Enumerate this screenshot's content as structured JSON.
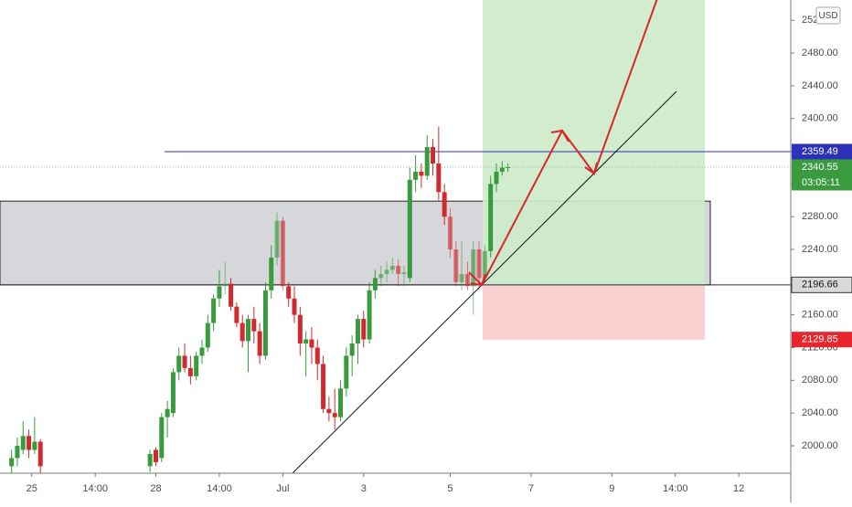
{
  "chart_data": {
    "type": "candlestick",
    "currency": "USD",
    "x": [
      2,
      3,
      4,
      5,
      6,
      7,
      26,
      27,
      28,
      29,
      30,
      31,
      32,
      33,
      34,
      35,
      36,
      37,
      38,
      39,
      40,
      41,
      42,
      43,
      44,
      45,
      46,
      47,
      48,
      49,
      50,
      51,
      52,
      53,
      54,
      55,
      56,
      57,
      58,
      59,
      60,
      61,
      62,
      63,
      64,
      65,
      66,
      67,
      68,
      69,
      70,
      71,
      72,
      73,
      74,
      75,
      76,
      77,
      78,
      79,
      80,
      81,
      82,
      83,
      84,
      85,
      86,
      87,
      88
    ],
    "open": [
      1975,
      1985,
      1995,
      2012,
      1995,
      2005,
      1975,
      1995,
      1985,
      2035,
      2040,
      2090,
      2110,
      2095,
      2085,
      2110,
      2120,
      2150,
      2180,
      2195,
      2198,
      2170,
      2150,
      2128,
      2155,
      2140,
      2110,
      2190,
      2230,
      2275,
      2195,
      2180,
      2160,
      2125,
      2130,
      2120,
      2100,
      2045,
      2040,
      2035,
      2070,
      2110,
      2125,
      2155,
      2130,
      2190,
      2205,
      2210,
      2215,
      2220,
      2210,
      2205,
      2325,
      2335,
      2330,
      2365,
      2345,
      2310,
      2280,
      2240,
      2200,
      2210,
      2195,
      2240,
      2205,
      2238,
      2320,
      2335,
      2340
    ],
    "high": [
      1995,
      2010,
      2030,
      2020,
      2035,
      2008,
      1995,
      1998,
      2040,
      2055,
      2095,
      2120,
      2125,
      2110,
      2115,
      2130,
      2160,
      2185,
      2215,
      2225,
      2205,
      2175,
      2160,
      2160,
      2170,
      2150,
      2200,
      2245,
      2285,
      2280,
      2200,
      2195,
      2170,
      2140,
      2145,
      2130,
      2110,
      2060,
      2070,
      2080,
      2120,
      2135,
      2160,
      2165,
      2200,
      2215,
      2220,
      2225,
      2230,
      2228,
      2220,
      2340,
      2355,
      2345,
      2380,
      2375,
      2390,
      2320,
      2290,
      2250,
      2250,
      2225,
      2250,
      2250,
      2245,
      2330,
      2345,
      2348,
      2345
    ],
    "low": [
      1965,
      1975,
      1990,
      1985,
      1990,
      1965,
      1968,
      1975,
      1980,
      2010,
      2035,
      2080,
      2090,
      2075,
      2080,
      2100,
      2115,
      2140,
      2170,
      2185,
      2165,
      2145,
      2120,
      2090,
      2125,
      2100,
      2105,
      2180,
      2220,
      2190,
      2170,
      2150,
      2110,
      2085,
      2100,
      2080,
      2040,
      2030,
      2020,
      2030,
      2060,
      2085,
      2100,
      2120,
      2125,
      2180,
      2195,
      2200,
      2210,
      2195,
      2195,
      2200,
      2310,
      2315,
      2325,
      2330,
      2300,
      2270,
      2230,
      2195,
      2190,
      2190,
      2160,
      2190,
      2200,
      2230,
      2310,
      2330,
      2335
    ],
    "close": [
      1985,
      2000,
      2012,
      1995,
      2005,
      1975,
      1990,
      1980,
      2035,
      2045,
      2090,
      2110,
      2095,
      2085,
      2110,
      2120,
      2150,
      2180,
      2195,
      2198,
      2170,
      2150,
      2128,
      2155,
      2140,
      2110,
      2190,
      2230,
      2275,
      2195,
      2180,
      2160,
      2125,
      2130,
      2120,
      2100,
      2045,
      2040,
      2035,
      2070,
      2110,
      2125,
      2155,
      2130,
      2190,
      2205,
      2210,
      2215,
      2220,
      2210,
      2212,
      2325,
      2335,
      2330,
      2365,
      2345,
      2310,
      2280,
      2240,
      2200,
      2210,
      2195,
      2240,
      2205,
      2238,
      2320,
      2335,
      2340,
      2340.55
    ],
    "up_color": "#3a9a3e",
    "down_color": "#cf2a2f",
    "xlim": [
      0,
      137
    ],
    "xticks": [
      {
        "value": 5.5,
        "label": "25"
      },
      {
        "value": 16.5,
        "label": "14:00"
      },
      {
        "value": 27,
        "label": "28"
      },
      {
        "value": 38,
        "label": "14:00"
      },
      {
        "value": 49,
        "label": "Jul"
      },
      {
        "value": 63,
        "label": "3"
      },
      {
        "value": 78,
        "label": "5"
      },
      {
        "value": 92,
        "label": "7"
      },
      {
        "value": 106,
        "label": "9"
      },
      {
        "value": 117,
        "label": "14:00"
      },
      {
        "value": 128,
        "label": "12"
      }
    ],
    "ylim": [
      1966.5,
      2544.8
    ],
    "yticks": [
      {
        "value": 2000,
        "label": "2000.00"
      },
      {
        "value": 2040,
        "label": "2040.00"
      },
      {
        "value": 2080,
        "label": "2080.00"
      },
      {
        "value": 2120,
        "label": "2120.00"
      },
      {
        "value": 2160,
        "label": "2160.00"
      },
      {
        "value": 2200,
        "label": "2200.00"
      },
      {
        "value": 2240,
        "label": "2240.00"
      },
      {
        "value": 2280,
        "label": "2280.00"
      },
      {
        "value": 2320,
        "label": "2320.00"
      },
      {
        "value": 2360,
        "label": "2360.00"
      },
      {
        "value": 2400,
        "label": "2400.00"
      },
      {
        "value": 2440,
        "label": "2440.00"
      },
      {
        "value": 2480,
        "label": "2480.00"
      },
      {
        "value": 2520,
        "label": "2520.00"
      }
    ],
    "zones": [
      {
        "low": 2196.66,
        "high": 2299,
        "color": "#d6d7db"
      },
      {
        "low": 2196.66,
        "high": 2545,
        "color": "#cdebc9"
      },
      {
        "low": 2129.85,
        "high": 2196.66,
        "color": "#fcd0d0"
      }
    ],
    "price_lines": [
      {
        "value": 2359.49,
        "color": "#2d31b8"
      },
      {
        "value": 2340.55,
        "color": "#3a9a3e"
      },
      {
        "value": 2196.66,
        "color": "#2b2b2b"
      },
      {
        "value": 2129.85,
        "color": "#e8252d"
      }
    ],
    "countdown": "03:05:11"
  }
}
